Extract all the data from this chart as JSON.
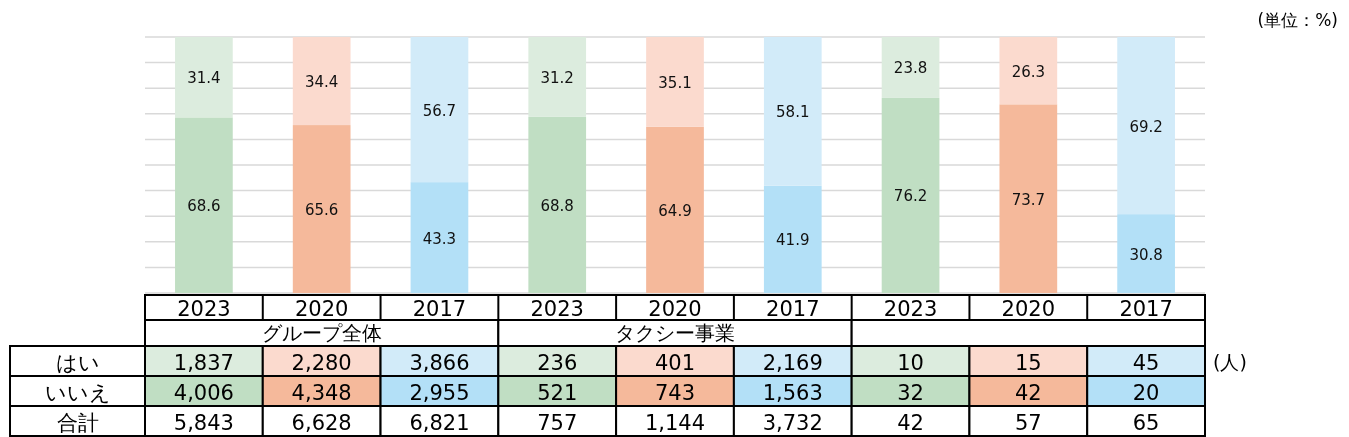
{
  "chart_data": [
    {
      "type": "bar",
      "stacked": true,
      "categories": [
        "2023",
        "2020",
        "2017",
        "2023",
        "2020",
        "2017",
        "2023",
        "2020",
        "2017"
      ],
      "ylim": [
        0,
        100
      ],
      "yticks": [
        {
          "value": 0,
          "label": null
        },
        {
          "value": 10,
          "label": null
        },
        {
          "value": 20,
          "label": null
        },
        {
          "value": 30,
          "label": null
        },
        {
          "value": 40,
          "label": null
        },
        {
          "value": 50,
          "label": null
        },
        {
          "value": 60,
          "label": null
        },
        {
          "value": 70,
          "label": null
        },
        {
          "value": 80,
          "label": null
        },
        {
          "value": 90,
          "label": null
        },
        {
          "value": 100,
          "label": null
        }
      ],
      "grid": "y",
      "tick_labels": "x",
      "data_labels": true,
      "annotations": [
        "(単位：%)"
      ],
      "series": [
        {
          "values": [
            68.6,
            65.6,
            43.3,
            68.8,
            64.9,
            41.9,
            76.2,
            73.7,
            30.8
          ],
          "colors": [
            "#c0dec3",
            "#f5b99b",
            "#b3e0f7",
            "#c0dec3",
            "#f5b99b",
            "#b3e0f7",
            "#c0dec3",
            "#f5b99b",
            "#b3e0f7"
          ]
        },
        {
          "values": [
            31.4,
            34.4,
            56.7,
            31.2,
            35.1,
            58.1,
            23.8,
            26.3,
            69.2
          ],
          "colors": [
            "#dcecde",
            "#fbdace",
            "#d2ebf9",
            "#dcecde",
            "#fbdace",
            "#d2ebf9",
            "#dcecde",
            "#fbdace",
            "#d2ebf9"
          ]
        }
      ]
    },
    {
      "type": "other",
      "y_categories": [
        null,
        "はい",
        "いいえ",
        "合計"
      ],
      "annotations": [
        "(人)"
      ],
      "cell_labels": [
        [
          "グループ全体",
          null,
          null,
          "タクシー事業",
          null,
          null,
          null,
          null,
          null
        ],
        [
          "1,837",
          "2,280",
          "3,866",
          "236",
          "401",
          "2,169",
          "10",
          "15",
          "45"
        ],
        [
          "4,006",
          "4,348",
          "2,955",
          "521",
          "743",
          "1,563",
          "32",
          "42",
          "20"
        ],
        [
          "5,843",
          "6,628",
          "6,821",
          "757",
          "1,144",
          "3,732",
          "42",
          "57",
          "65"
        ]
      ],
      "colors": [
        [
          null,
          null,
          null,
          null,
          null,
          null,
          null,
          null,
          null
        ],
        [
          "#dcecde",
          "#fbdace",
          "#d2ebf9",
          "#dcecde",
          "#fbdace",
          "#d2ebf9",
          "#dcecde",
          "#fbdace",
          "#d2ebf9"
        ],
        [
          "#c0dec3",
          "#f5b99b",
          "#b3e0f7",
          "#c0dec3",
          "#f5b99b",
          "#b3e0f7",
          "#c0dec3",
          "#f5b99b",
          "#b3e0f7"
        ],
        [
          null,
          null,
          null,
          null,
          null,
          null,
          null,
          null,
          null
        ]
      ]
    }
  ]
}
